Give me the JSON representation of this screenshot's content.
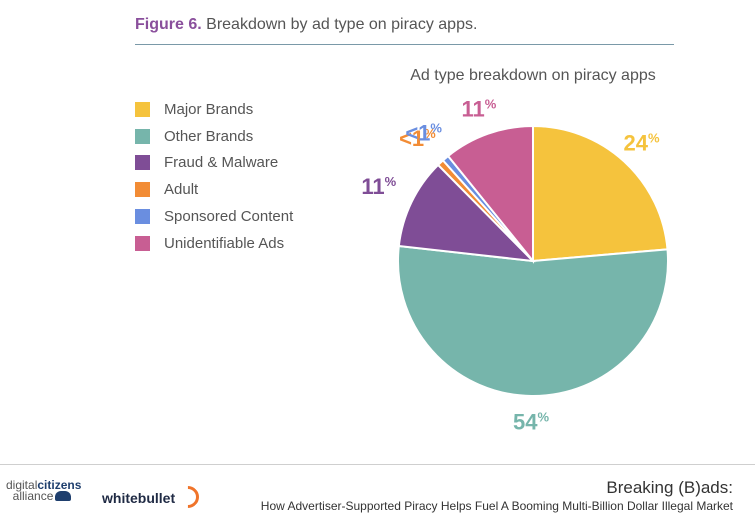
{
  "figure": {
    "number_label": "Figure 6.",
    "caption": "Breakdown by ad type on piracy apps."
  },
  "chart_data": {
    "type": "pie",
    "title": "Ad type breakdown on piracy apps",
    "categories": [
      "Major Brands",
      "Other Brands",
      "Fraud & Malware",
      "Adult",
      "Sponsored Content",
      "Unidentifiable Ads"
    ],
    "values": [
      24,
      54,
      11,
      0.8,
      0.8,
      11
    ],
    "data_labels": [
      {
        "category": "Major Brands",
        "number": "24",
        "suffix": "%"
      },
      {
        "category": "Other Brands",
        "number": "54",
        "suffix": "%"
      },
      {
        "category": "Fraud & Malware",
        "number": "11",
        "suffix": "%"
      },
      {
        "category": "Adult",
        "number": "<1",
        "suffix": "%"
      },
      {
        "category": "Sponsored Content",
        "number": "<1",
        "suffix": "%"
      },
      {
        "category": "Unidentifiable Ads",
        "number": "11",
        "suffix": "%"
      }
    ],
    "colors": [
      "#f5c33d",
      "#76b5ab",
      "#7f4d96",
      "#f28c35",
      "#6a8ee0",
      "#c85e93"
    ],
    "legend_position": "left"
  },
  "footer": {
    "logo_dca_part1": "digital",
    "logo_dca_part2": "citizens",
    "logo_dca_part3": "alliance",
    "logo_wb": "whitebullet",
    "report_title": "Breaking (B)ads:",
    "report_subtitle": "How Advertiser-Supported Piracy Helps Fuel A Booming Multi-Billion Dollar Illegal Market"
  }
}
